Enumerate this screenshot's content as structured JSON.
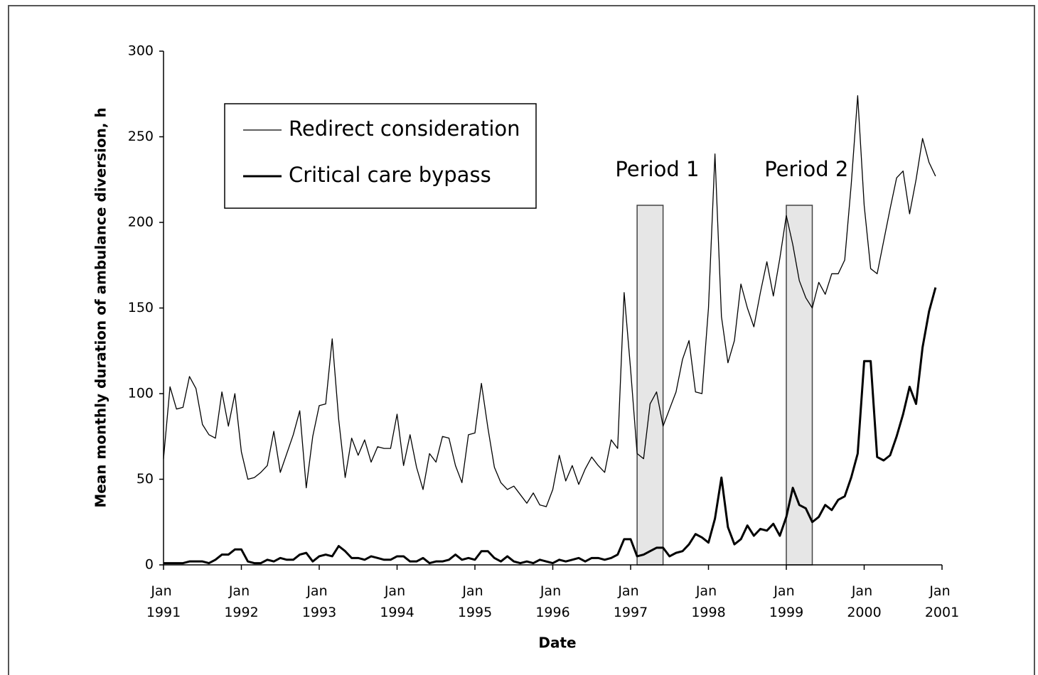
{
  "chart_data": {
    "type": "line",
    "y_label": "Mean monthly duration of ambulance diversion, h",
    "x_label": "Date",
    "xlim": [
      "1991-01",
      "2001-01"
    ],
    "xticks": [
      {
        "value": "1991-01",
        "label": "Jan 1991"
      },
      {
        "value": "1992-01",
        "label": "Jan 1992"
      },
      {
        "value": "1993-01",
        "label": "Jan 1993"
      },
      {
        "value": "1994-01",
        "label": "Jan 1994"
      },
      {
        "value": "1995-01",
        "label": "Jan 1995"
      },
      {
        "value": "1996-01",
        "label": "Jan 1996"
      },
      {
        "value": "1997-01",
        "label": "Jan 1997"
      },
      {
        "value": "1998-01",
        "label": "Jan 1998"
      },
      {
        "value": "1999-01",
        "label": "Jan 1999"
      },
      {
        "value": "2000-01",
        "label": "Jan 2000"
      },
      {
        "value": "2001-01",
        "label": "Jan 2001"
      }
    ],
    "ylim": [
      0,
      300
    ],
    "yticks": [
      0,
      50,
      100,
      150,
      200,
      250,
      300
    ],
    "periods": [
      {
        "label": "Period 1",
        "start": "1997-02",
        "end": "1997-06",
        "top": 210,
        "color": "#e6e6e6"
      },
      {
        "label": "Period 2",
        "start": "1999-01",
        "end": "1999-05",
        "top": 210,
        "color": "#e6e6e6"
      }
    ],
    "x": [
      "1991-01",
      "1991-02",
      "1991-03",
      "1991-04",
      "1991-05",
      "1991-06",
      "1991-07",
      "1991-08",
      "1991-09",
      "1991-10",
      "1991-11",
      "1991-12",
      "1992-01",
      "1992-02",
      "1992-03",
      "1992-04",
      "1992-05",
      "1992-06",
      "1992-07",
      "1992-08",
      "1992-09",
      "1992-10",
      "1992-11",
      "1992-12",
      "1993-01",
      "1993-02",
      "1993-03",
      "1993-04",
      "1993-05",
      "1993-06",
      "1993-07",
      "1993-08",
      "1993-09",
      "1993-10",
      "1993-11",
      "1993-12",
      "1994-01",
      "1994-02",
      "1994-03",
      "1994-04",
      "1994-05",
      "1994-06",
      "1994-07",
      "1994-08",
      "1994-09",
      "1994-10",
      "1994-11",
      "1994-12",
      "1995-01",
      "1995-02",
      "1995-03",
      "1995-04",
      "1995-05",
      "1995-06",
      "1995-07",
      "1995-08",
      "1995-09",
      "1995-10",
      "1995-11",
      "1995-12",
      "1996-01",
      "1996-02",
      "1996-03",
      "1996-04",
      "1996-05",
      "1996-06",
      "1996-07",
      "1996-08",
      "1996-09",
      "1996-10",
      "1996-11",
      "1996-12",
      "1997-01",
      "1997-02",
      "1997-03",
      "1997-04",
      "1997-05",
      "1997-06",
      "1997-07",
      "1997-08",
      "1997-09",
      "1997-10",
      "1997-11",
      "1997-12",
      "1998-01",
      "1998-02",
      "1998-03",
      "1998-04",
      "1998-05",
      "1998-06",
      "1998-07",
      "1998-08",
      "1998-09",
      "1998-10",
      "1998-11",
      "1998-12",
      "1999-01",
      "1999-02",
      "1999-03",
      "1999-04",
      "1999-05",
      "1999-06",
      "1999-07",
      "1999-08",
      "1999-09",
      "1999-10",
      "1999-11",
      "1999-12",
      "2000-01",
      "2000-02",
      "2000-03",
      "2000-04",
      "2000-05",
      "2000-06",
      "2000-07",
      "2000-08",
      "2000-09",
      "2000-10",
      "2000-11",
      "2000-12"
    ],
    "series": [
      {
        "name": "Redirect consideration",
        "color": "#000000",
        "width": 1.3,
        "values": [
          62,
          104,
          91,
          92,
          110,
          103,
          82,
          76,
          74,
          101,
          81,
          100,
          66,
          50,
          51,
          54,
          58,
          78,
          54,
          65,
          76,
          90,
          45,
          75,
          93,
          94,
          132,
          85,
          51,
          74,
          64,
          73,
          60,
          69,
          68,
          68,
          88,
          58,
          76,
          57,
          44,
          65,
          60,
          75,
          74,
          58,
          48,
          76,
          77,
          106,
          80,
          57,
          48,
          44,
          46,
          41,
          36,
          42,
          35,
          34,
          44,
          64,
          49,
          58,
          47,
          56,
          63,
          58,
          54,
          73,
          68,
          159,
          114,
          65,
          62,
          94,
          101,
          81,
          91,
          101,
          120,
          131,
          101,
          100,
          150,
          240,
          145,
          118,
          131,
          164,
          150,
          139,
          159,
          177,
          157,
          179,
          204,
          187,
          166,
          156,
          150,
          165,
          158,
          170,
          170,
          178,
          222,
          274,
          210,
          173,
          170,
          189,
          208,
          226,
          230,
          205,
          225,
          249,
          235,
          227
        ]
      },
      {
        "name": "Critical care bypass",
        "color": "#000000",
        "width": 3,
        "values": [
          1,
          1,
          1,
          1,
          2,
          2,
          2,
          1,
          3,
          6,
          6,
          9,
          9,
          2,
          1,
          1,
          3,
          2,
          4,
          3,
          3,
          6,
          7,
          2,
          5,
          6,
          5,
          11,
          8,
          4,
          4,
          3,
          5,
          4,
          3,
          3,
          5,
          5,
          2,
          2,
          4,
          1,
          2,
          2,
          3,
          6,
          3,
          4,
          3,
          8,
          8,
          4,
          2,
          5,
          2,
          1,
          2,
          1,
          3,
          2,
          1,
          3,
          2,
          3,
          4,
          2,
          4,
          4,
          3,
          4,
          6,
          15,
          15,
          5,
          6,
          8,
          10,
          10,
          5,
          7,
          8,
          12,
          18,
          16,
          13,
          27,
          51,
          22,
          12,
          15,
          23,
          17,
          21,
          20,
          24,
          17,
          28,
          45,
          35,
          33,
          25,
          28,
          35,
          32,
          38,
          40,
          51,
          65,
          119,
          119,
          63,
          61,
          64,
          75,
          88,
          104,
          94,
          127,
          148,
          162
        ]
      }
    ]
  }
}
